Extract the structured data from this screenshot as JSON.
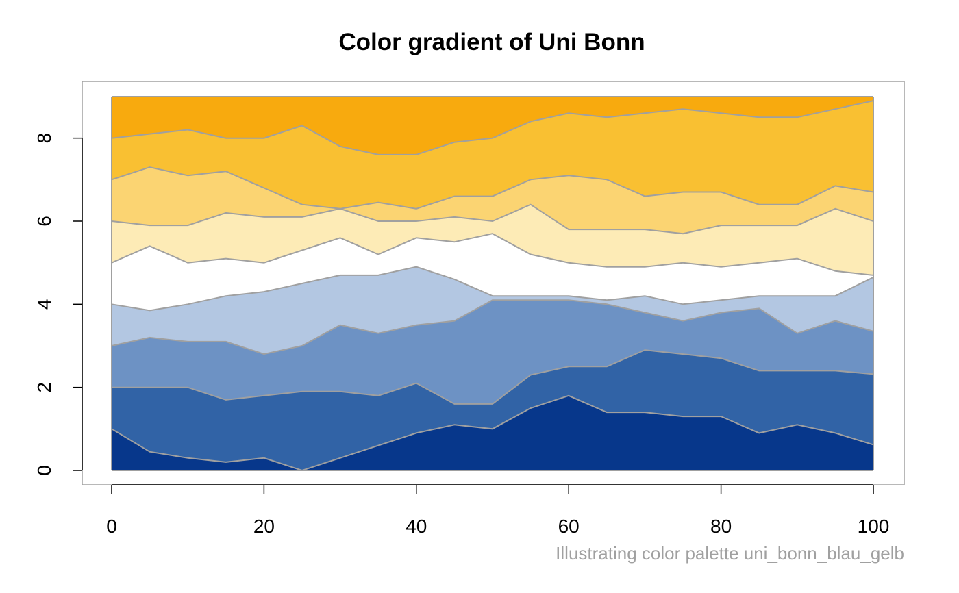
{
  "chart_data": {
    "type": "area",
    "title": "Color gradient of Uni Bonn",
    "caption": "Illustrating color palette uni_bonn_blau_gelb",
    "xlabel": "",
    "ylabel": "",
    "xlim": [
      0,
      100
    ],
    "ylim": [
      0,
      9
    ],
    "x_ticks": [
      "0",
      "20",
      "40",
      "60",
      "80",
      "100"
    ],
    "y_ticks": [
      "0",
      "2",
      "4",
      "6",
      "8"
    ],
    "grid": false,
    "legend": "none",
    "band_colors": [
      "#07378b",
      "#3163a6",
      "#6d92c4",
      "#b3c7e2",
      "#ffffff",
      "#fdebb6",
      "#fbd472",
      "#f9c032",
      "#f8aa0e"
    ],
    "boundary_color": "#a0a0a0",
    "x": [
      0,
      5,
      10,
      15,
      20,
      25,
      30,
      35,
      40,
      45,
      50,
      55,
      60,
      65,
      70,
      75,
      80,
      85,
      90,
      95,
      100
    ],
    "boundaries": [
      [
        1.0,
        0.45,
        0.3,
        0.2,
        0.3,
        0.0,
        0.3,
        0.6,
        0.9,
        1.1,
        1.0,
        1.5,
        1.8,
        1.4,
        1.4,
        1.3,
        1.3,
        0.9,
        1.1,
        0.9,
        0.62
      ],
      [
        2.0,
        2.0,
        2.0,
        1.7,
        1.8,
        1.9,
        1.9,
        1.8,
        2.1,
        1.6,
        1.6,
        2.3,
        2.5,
        2.5,
        2.9,
        2.8,
        2.7,
        2.4,
        2.4,
        2.4,
        2.32
      ],
      [
        3.0,
        3.2,
        3.1,
        3.1,
        2.8,
        3.0,
        3.5,
        3.3,
        3.5,
        3.6,
        4.1,
        4.1,
        4.1,
        4.0,
        3.8,
        3.6,
        3.8,
        3.9,
        3.3,
        3.6,
        3.35
      ],
      [
        4.0,
        3.85,
        4.0,
        4.2,
        4.3,
        4.5,
        4.7,
        4.7,
        4.9,
        4.6,
        4.2,
        4.2,
        4.2,
        4.1,
        4.2,
        4.0,
        4.1,
        4.2,
        4.2,
        4.2,
        4.65
      ],
      [
        5.0,
        5.4,
        5.0,
        5.1,
        5.0,
        5.3,
        5.6,
        5.2,
        5.6,
        5.5,
        5.7,
        5.2,
        5.0,
        4.9,
        4.9,
        5.0,
        4.9,
        5.0,
        5.1,
        4.8,
        4.7
      ],
      [
        6.0,
        5.9,
        5.9,
        6.2,
        6.1,
        6.1,
        6.3,
        6.0,
        6.0,
        6.1,
        6.0,
        6.4,
        5.8,
        5.8,
        5.8,
        5.7,
        5.9,
        5.9,
        5.9,
        6.3,
        6.0
      ],
      [
        7.0,
        7.3,
        7.1,
        7.2,
        6.8,
        6.4,
        6.3,
        6.45,
        6.3,
        6.6,
        6.6,
        7.0,
        7.1,
        7.0,
        6.6,
        6.7,
        6.7,
        6.4,
        6.4,
        6.85,
        6.7
      ],
      [
        8.0,
        8.1,
        8.2,
        8.0,
        8.0,
        8.3,
        7.8,
        7.6,
        7.6,
        7.9,
        8.0,
        8.4,
        8.6,
        8.5,
        8.6,
        8.7,
        8.6,
        8.5,
        8.5,
        8.7,
        8.9
      ],
      [
        9.0,
        9.0,
        9.0,
        9.0,
        9.0,
        9.0,
        9.0,
        9.0,
        9.0,
        9.0,
        9.0,
        9.0,
        9.0,
        9.0,
        9.0,
        9.0,
        9.0,
        9.0,
        9.0,
        9.0,
        9.0
      ]
    ]
  }
}
